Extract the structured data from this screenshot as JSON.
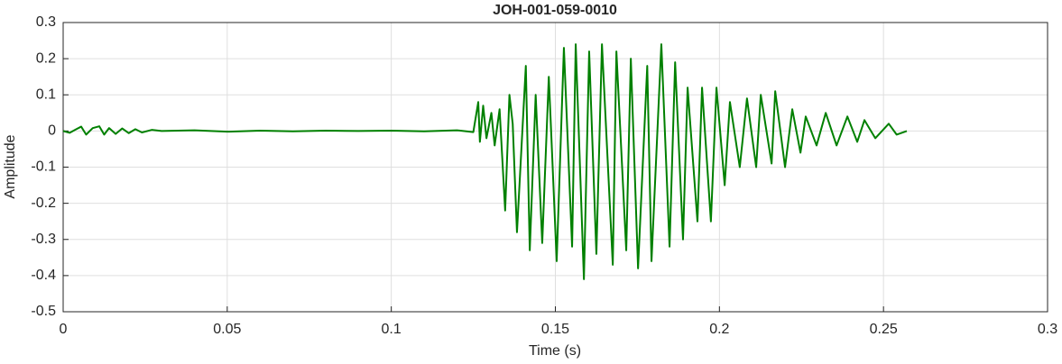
{
  "chart_data": {
    "type": "line",
    "title": "JOH-001-059-0010",
    "x_label": "Time (s)",
    "y_label": "Amplitude",
    "x": [
      0,
      0.002,
      0.004,
      0.0055,
      0.007,
      0.009,
      0.011,
      0.0125,
      0.014,
      0.016,
      0.018,
      0.02,
      0.022,
      0.024,
      0.027,
      0.03,
      0.04,
      0.05,
      0.06,
      0.07,
      0.08,
      0.09,
      0.1,
      0.11,
      0.12,
      0.125,
      0.1265,
      0.127,
      0.128,
      0.129,
      0.1305,
      0.1315,
      0.133,
      0.1347,
      0.136,
      0.137,
      0.1383,
      0.141,
      0.1422,
      0.144,
      0.146,
      0.148,
      0.1504,
      0.1526,
      0.1551,
      0.1562,
      0.1587,
      0.1603,
      0.1625,
      0.1642,
      0.1675,
      0.1686,
      0.1716,
      0.173,
      0.1752,
      0.178,
      0.1793,
      0.1823,
      0.1848,
      0.1865,
      0.1889,
      0.1903,
      0.1933,
      0.1947,
      0.1974,
      0.1991,
      0.2016,
      0.2032,
      0.2062,
      0.2084,
      0.2112,
      0.2126,
      0.2159,
      0.217,
      0.22,
      0.2222,
      0.2247,
      0.2263,
      0.2296,
      0.2324,
      0.2357,
      0.239,
      0.242,
      0.2442,
      0.2475,
      0.2516,
      0.254,
      0.2571
    ],
    "values": [
      0,
      -0.005,
      0.005,
      0.012,
      -0.01,
      0.008,
      0.013,
      -0.01,
      0.008,
      -0.008,
      0.007,
      -0.006,
      0.005,
      -0.004,
      0.003,
      0,
      0.002,
      -0.002,
      0.001,
      -0.001,
      0.001,
      0,
      0.001,
      -0.001,
      0.002,
      -0.003,
      0.08,
      -0.03,
      0.07,
      -0.02,
      0.05,
      -0.04,
      0.06,
      -0.22,
      0.1,
      0.02,
      -0.28,
      0.18,
      -0.33,
      0.1,
      -0.31,
      0.15,
      -0.36,
      0.23,
      -0.32,
      0.24,
      -0.41,
      0.22,
      -0.34,
      0.24,
      -0.37,
      0.22,
      -0.33,
      0.2,
      -0.38,
      0.18,
      -0.36,
      0.24,
      -0.32,
      0.19,
      -0.3,
      0.12,
      -0.25,
      0.12,
      -0.25,
      0.12,
      -0.15,
      0.08,
      -0.1,
      0.09,
      -0.1,
      0.1,
      -0.09,
      0.11,
      -0.1,
      0.06,
      -0.06,
      0.04,
      -0.04,
      0.05,
      -0.04,
      0.04,
      -0.03,
      0.03,
      -0.02,
      0.02,
      -0.01,
      0
    ],
    "color": "#008000",
    "xlim": [
      0,
      0.3
    ],
    "xticks": [
      0,
      0.05,
      0.1,
      0.15,
      0.2,
      0.25,
      0.3
    ],
    "ylim": [
      -0.5,
      0.3
    ],
    "yticks": [
      -0.5,
      -0.4,
      -0.3,
      -0.2,
      -0.1,
      0,
      0.1,
      0.2,
      0.3
    ],
    "grid": true
  }
}
